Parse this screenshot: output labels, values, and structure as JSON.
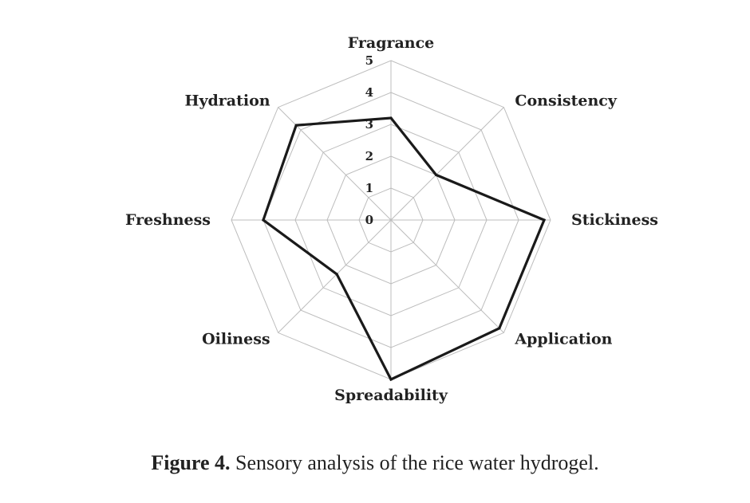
{
  "chart_data": {
    "type": "radar",
    "axes": [
      "Fragrance",
      "Consistency",
      "Stickiness",
      "Application",
      "Spreadability",
      "Oiliness",
      "Freshness",
      "Hydration"
    ],
    "series": [
      {
        "values": [
          3.2,
          2.0,
          4.8,
          4.8,
          5.0,
          2.4,
          4.0,
          4.2
        ]
      }
    ],
    "rlim": [
      0,
      5
    ],
    "rticks": [
      "0",
      "1",
      "2",
      "3",
      "4",
      "5"
    ],
    "grid": true,
    "line_color": "#1a1a1a",
    "grid_color": "#bdbdbd"
  },
  "caption": {
    "label": "Figure 4.",
    "text": " Sensory analysis of the rice water hydrogel."
  }
}
